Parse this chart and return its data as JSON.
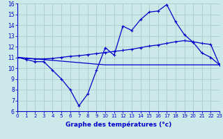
{
  "title": "Graphe des températures (°c)",
  "bg_color": "#cce8e8",
  "grid_color": "#aacccc",
  "line_color": "#0000cc",
  "xmin": 0,
  "xmax": 23,
  "ymin": 6,
  "ymax": 16,
  "yticks": [
    6,
    7,
    8,
    9,
    10,
    11,
    12,
    13,
    14,
    15,
    16
  ],
  "xticks": [
    0,
    1,
    2,
    3,
    4,
    5,
    6,
    7,
    8,
    9,
    10,
    11,
    12,
    13,
    14,
    15,
    16,
    17,
    18,
    19,
    20,
    21,
    22,
    23
  ],
  "line1_x": [
    0,
    1,
    2,
    3,
    4,
    5,
    6,
    7,
    8,
    9,
    10,
    11,
    12,
    13,
    14,
    15,
    16,
    17,
    18,
    19,
    20,
    21,
    22,
    23
  ],
  "line1_y": [
    11.0,
    10.8,
    10.6,
    10.6,
    9.8,
    9.0,
    8.0,
    6.5,
    7.6,
    9.8,
    11.9,
    11.2,
    13.9,
    13.5,
    14.5,
    15.2,
    15.3,
    15.9,
    14.3,
    13.1,
    12.4,
    11.4,
    11.0,
    10.3
  ],
  "line2_x": [
    0,
    1,
    2,
    3,
    4,
    5,
    6,
    7,
    8,
    9,
    10,
    11,
    12,
    13,
    14,
    15,
    16,
    17,
    18,
    19,
    20,
    21,
    22,
    23
  ],
  "line2_y": [
    11.0,
    10.9,
    10.85,
    10.85,
    10.9,
    11.0,
    11.1,
    11.15,
    11.25,
    11.35,
    11.45,
    11.55,
    11.65,
    11.75,
    11.9,
    12.05,
    12.15,
    12.3,
    12.45,
    12.55,
    12.45,
    12.3,
    12.2,
    10.3
  ],
  "line3_x": [
    0,
    10,
    22,
    23
  ],
  "line3_y": [
    11.0,
    10.3,
    10.3,
    10.3
  ]
}
